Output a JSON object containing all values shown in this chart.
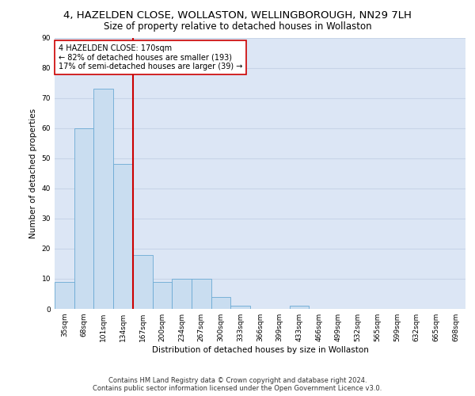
{
  "title_line1": "4, HAZELDEN CLOSE, WOLLASTON, WELLINGBOROUGH, NN29 7LH",
  "title_line2": "Size of property relative to detached houses in Wollaston",
  "xlabel": "Distribution of detached houses by size in Wollaston",
  "ylabel": "Number of detached properties",
  "categories": [
    "35sqm",
    "68sqm",
    "101sqm",
    "134sqm",
    "167sqm",
    "200sqm",
    "234sqm",
    "267sqm",
    "300sqm",
    "333sqm",
    "366sqm",
    "399sqm",
    "433sqm",
    "466sqm",
    "499sqm",
    "532sqm",
    "565sqm",
    "599sqm",
    "632sqm",
    "665sqm",
    "698sqm"
  ],
  "values": [
    9,
    60,
    73,
    48,
    18,
    9,
    10,
    10,
    4,
    1,
    0,
    0,
    1,
    0,
    0,
    0,
    0,
    0,
    0,
    0,
    0
  ],
  "bar_color": "#c9ddf0",
  "bar_edge_color": "#6aaad4",
  "vline_color": "#cc0000",
  "annotation_text": "4 HAZELDEN CLOSE: 170sqm\n← 82% of detached houses are smaller (193)\n17% of semi-detached houses are larger (39) →",
  "annotation_box_color": "white",
  "annotation_box_edge_color": "#cc0000",
  "ylim": [
    0,
    90
  ],
  "yticks": [
    0,
    10,
    20,
    30,
    40,
    50,
    60,
    70,
    80,
    90
  ],
  "grid_color": "#c8d4e8",
  "background_color": "#dce6f5",
  "footer_line1": "Contains HM Land Registry data © Crown copyright and database right 2024.",
  "footer_line2": "Contains public sector information licensed under the Open Government Licence v3.0.",
  "title_fontsize": 9.5,
  "subtitle_fontsize": 8.5,
  "axis_label_fontsize": 7.5,
  "tick_fontsize": 6.5,
  "annotation_fontsize": 7,
  "footer_fontsize": 6
}
